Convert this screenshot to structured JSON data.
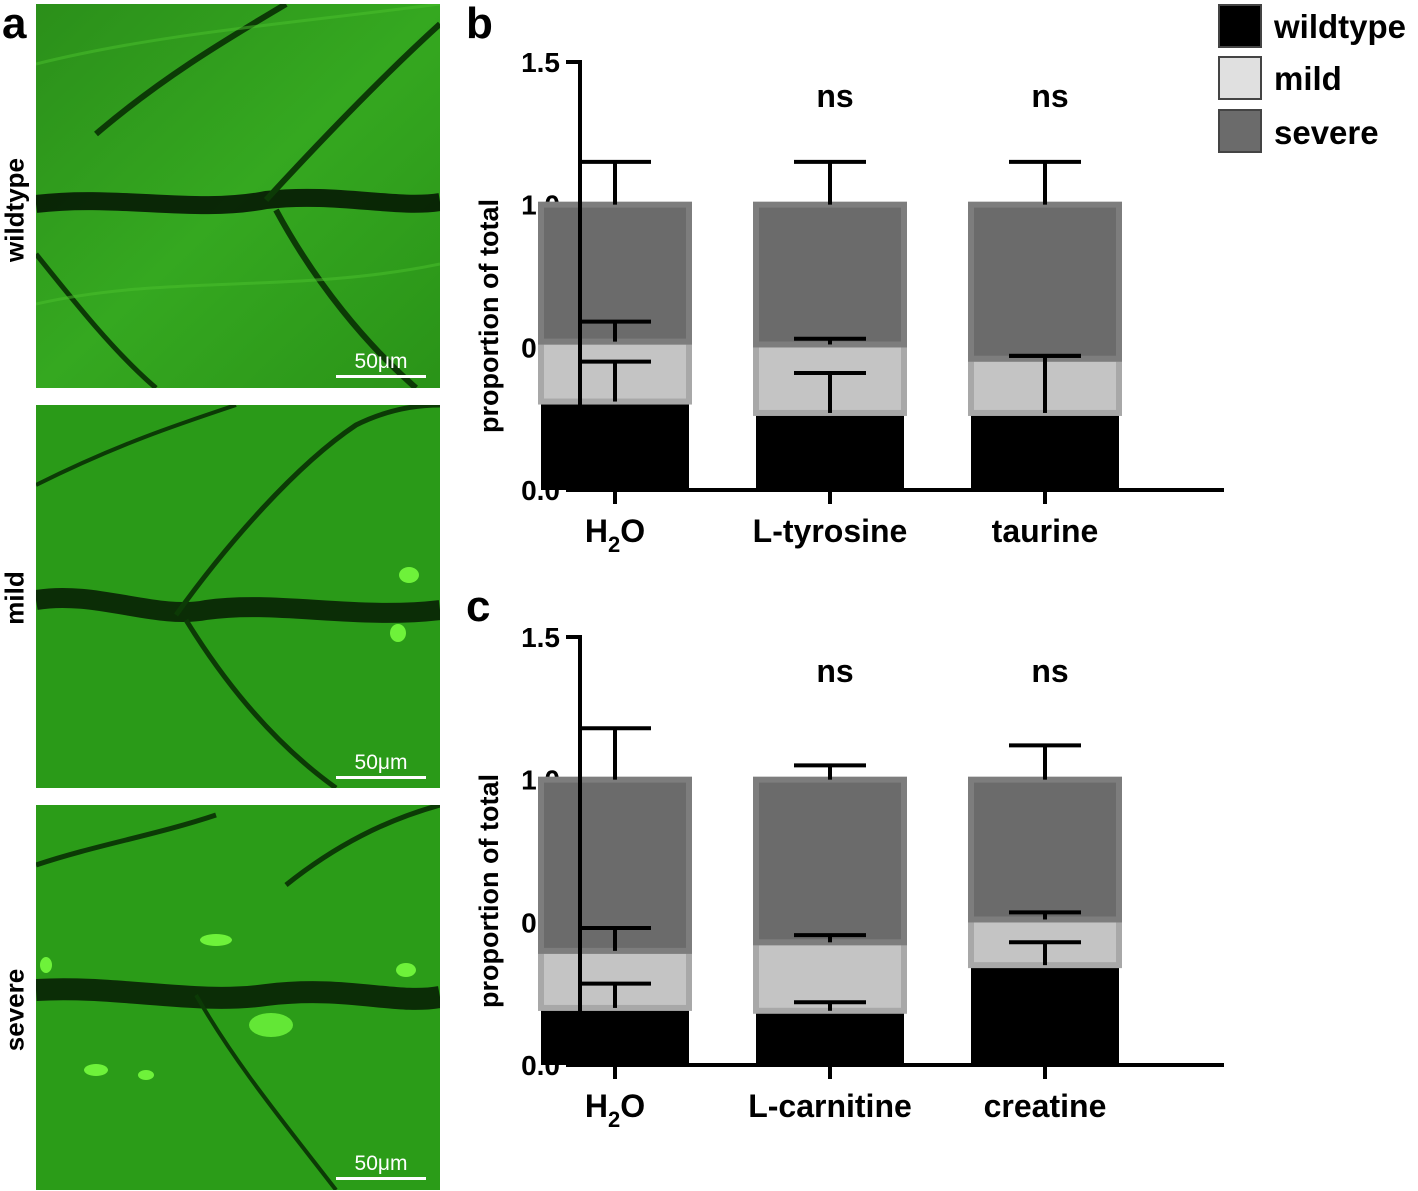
{
  "panel_a": {
    "letter": "a",
    "rows": [
      {
        "label": "wildtype",
        "scale": "50μm"
      },
      {
        "label": "mild",
        "scale": "50μm"
      },
      {
        "label": "severe",
        "scale": "50μm"
      }
    ]
  },
  "legend": {
    "items": [
      {
        "label": "wildtype",
        "color": "#000000"
      },
      {
        "label": "mild",
        "color": "#e0e0e0"
      },
      {
        "label": "severe",
        "color": "#6b6b6b"
      }
    ]
  },
  "chart_data": [
    {
      "panel": "b",
      "type": "bar",
      "stacked": true,
      "ylabel": "proportion of total",
      "ylim": [
        0,
        1.5
      ],
      "yticks": [
        "0.0",
        "0.5",
        "1.0",
        "1.5"
      ],
      "categories": [
        "H2O",
        "L-tyrosine",
        "taurine"
      ],
      "annotations": [
        "",
        "ns",
        "ns"
      ],
      "series": [
        {
          "name": "wildtype",
          "color": "#000000",
          "values": [
            0.31,
            0.27,
            0.27
          ],
          "error": [
            0.14,
            0.14,
            0.2
          ]
        },
        {
          "name": "mild",
          "color": "#c4c4c4",
          "values": [
            0.21,
            0.24,
            0.19
          ],
          "error": [
            0.07,
            0.02,
            0.01
          ]
        },
        {
          "name": "severe",
          "color": "#6b6b6b",
          "values": [
            0.48,
            0.49,
            0.54
          ],
          "error": [
            0.15,
            0.15,
            0.15
          ]
        }
      ]
    },
    {
      "panel": "c",
      "type": "bar",
      "stacked": true,
      "ylabel": "proportion of total",
      "ylim": [
        0,
        1.5
      ],
      "yticks": [
        "0.0",
        "0.5",
        "1.0",
        "1.5"
      ],
      "categories": [
        "H2O",
        "L-carnitine",
        "creatine"
      ],
      "annotations": [
        "",
        "ns",
        "ns"
      ],
      "series": [
        {
          "name": "wildtype",
          "color": "#000000",
          "values": [
            0.2,
            0.19,
            0.35
          ],
          "error": [
            0.085,
            0.03,
            0.08
          ]
        },
        {
          "name": "mild",
          "color": "#c4c4c4",
          "values": [
            0.2,
            0.24,
            0.16
          ],
          "error": [
            0.08,
            0.025,
            0.025
          ]
        },
        {
          "name": "severe",
          "color": "#6b6b6b",
          "values": [
            0.6,
            0.57,
            0.49
          ],
          "error": [
            0.18,
            0.05,
            0.12
          ]
        }
      ]
    }
  ]
}
